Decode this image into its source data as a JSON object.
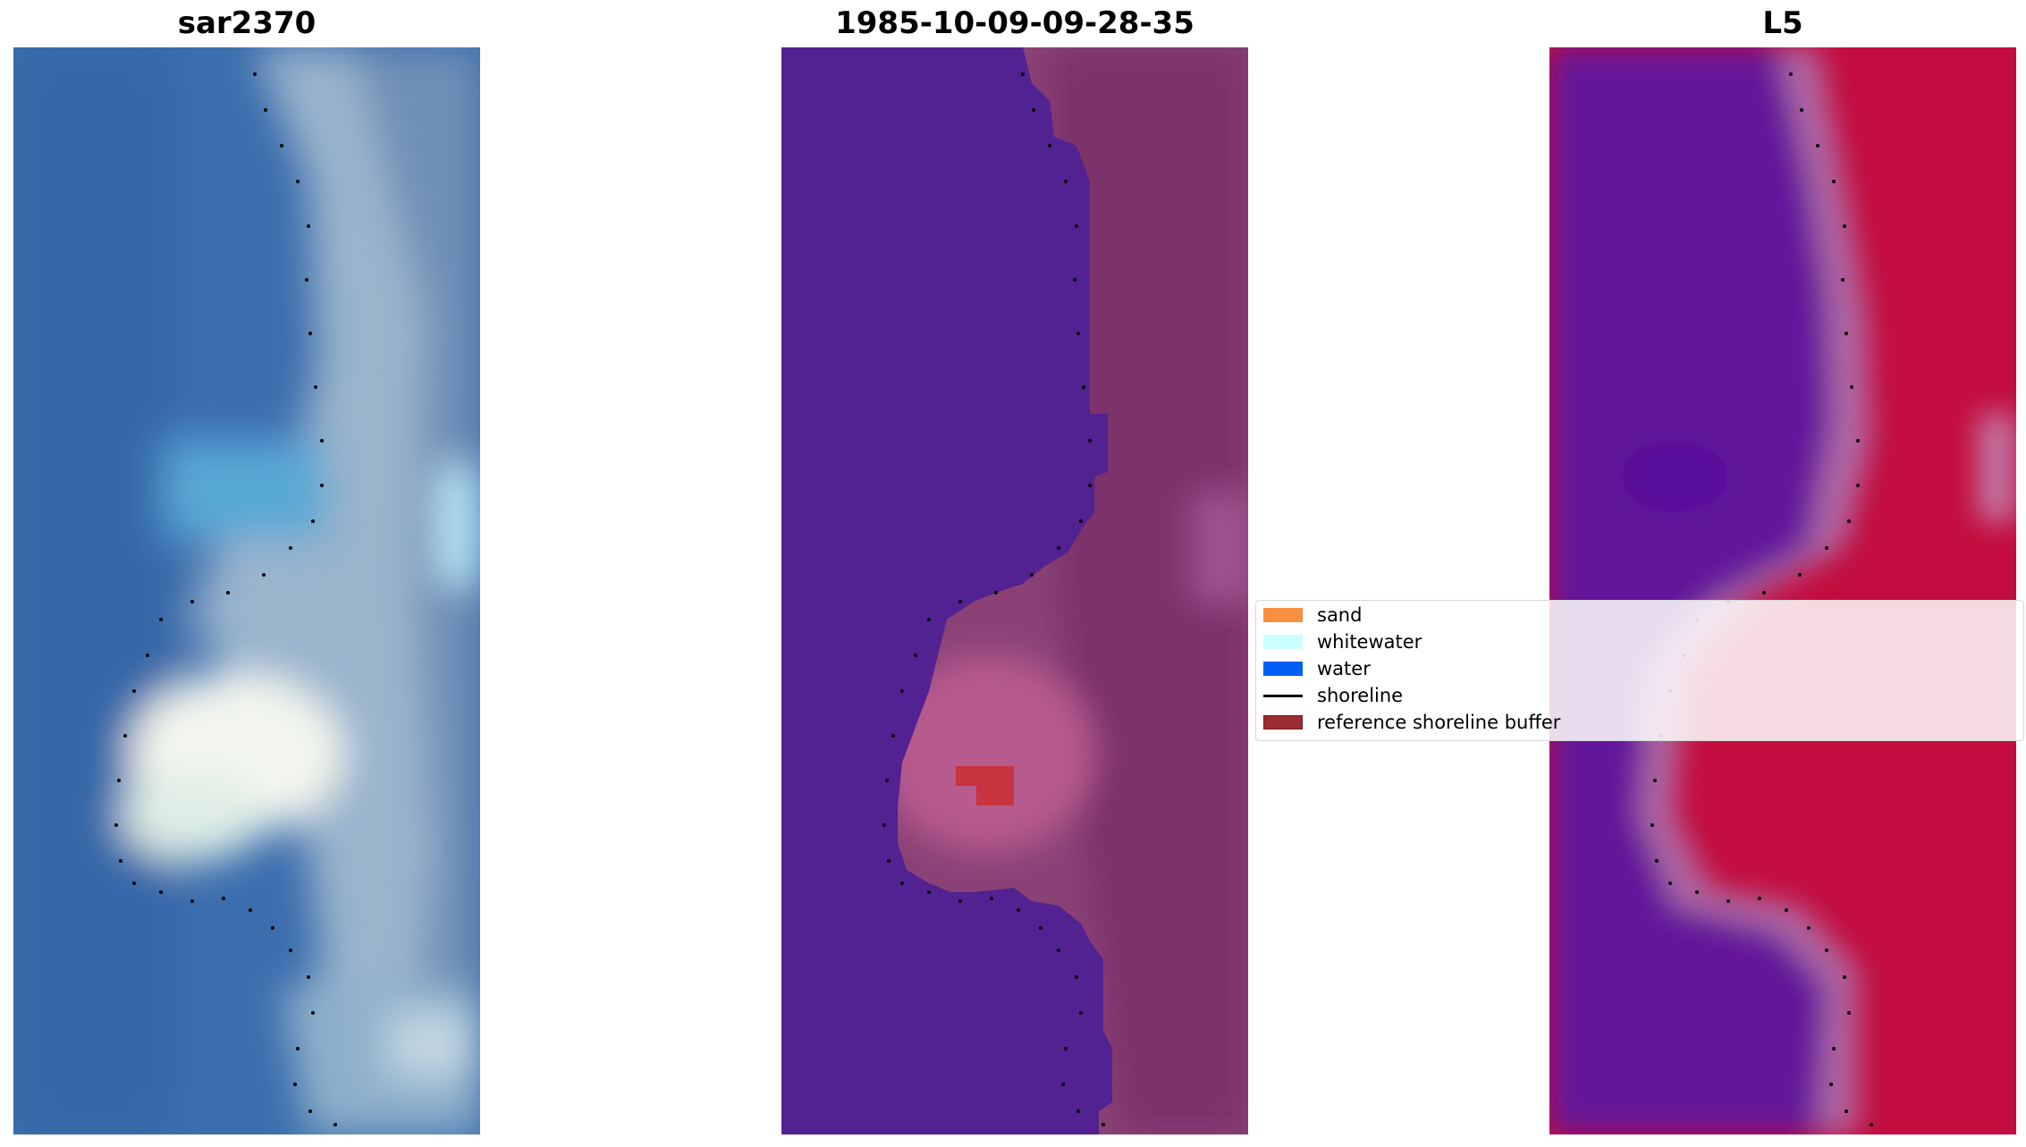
{
  "panels": [
    {
      "title": "sar2370",
      "style": "rgb-blue"
    },
    {
      "title": "1985-10-09-09-28-35",
      "style": "classified"
    },
    {
      "title": "L5",
      "style": "index"
    }
  ],
  "legend": {
    "items": [
      {
        "label": "sand",
        "kind": "patch",
        "color": "#f78f3f"
      },
      {
        "label": "whitewater",
        "kind": "patch",
        "color": "#ccffff"
      },
      {
        "label": "water",
        "kind": "patch",
        "color": "#005ef5"
      },
      {
        "label": "shoreline",
        "kind": "line",
        "color": "#000000"
      },
      {
        "label": "reference shoreline buffer",
        "kind": "patch",
        "color": "#9b2c34"
      }
    ]
  },
  "colors": {
    "water_purple": "#522192",
    "land_mauve": "#8a4276",
    "buffer_red": "#c8343f",
    "sar_blue": "#3a6fac",
    "l5_red": "#c20d3e",
    "l5_purple": "#63169a"
  }
}
